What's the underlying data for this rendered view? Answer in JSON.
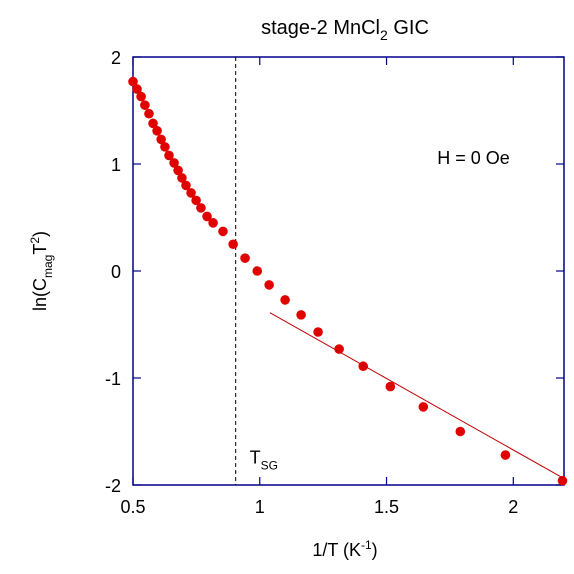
{
  "chart_data": {
    "type": "scatter",
    "title": {
      "text": "stage-2 MnCl",
      "sub": "2",
      "rest": " GIC"
    },
    "xlabel": {
      "text": "1/T (K",
      "sup": "-1",
      "rest": ")"
    },
    "ylabel": {
      "text": "ln(C",
      "sub": "mag",
      "mid": "T",
      "sup": "2",
      "rest": ")"
    },
    "annotations": [
      {
        "text": "H = 0 Oe",
        "x": 1.7,
        "y": 1.0
      },
      {
        "text": "T",
        "sub": "SG",
        "x": 0.96,
        "y": -1.8
      }
    ],
    "vline": {
      "x": 0.905,
      "style": "dashed"
    },
    "xlim": [
      0.5,
      2.2
    ],
    "ylim": [
      -2,
      2
    ],
    "xticks": [
      0.5,
      1,
      1.5,
      2
    ],
    "yticks": [
      -2,
      -1,
      0,
      1,
      2
    ],
    "series": [
      {
        "color": "#e00000",
        "kind": "points",
        "x": [
          0.5,
          0.516,
          0.532,
          0.547,
          0.563,
          0.579,
          0.595,
          0.611,
          0.626,
          0.642,
          0.662,
          0.678,
          0.693,
          0.709,
          0.729,
          0.749,
          0.768,
          0.792,
          0.816,
          0.855,
          0.895,
          0.942,
          0.99,
          1.037,
          1.1,
          1.163,
          1.23,
          1.313,
          1.408,
          1.515,
          1.645,
          1.791,
          1.969,
          2.194
        ],
        "values": [
          1.77,
          1.7,
          1.63,
          1.55,
          1.47,
          1.38,
          1.31,
          1.23,
          1.16,
          1.08,
          1.01,
          0.94,
          0.87,
          0.8,
          0.73,
          0.66,
          0.59,
          0.51,
          0.45,
          0.37,
          0.25,
          0.12,
          0.0,
          -0.13,
          -0.27,
          -0.41,
          -0.57,
          -0.73,
          -0.89,
          -1.08,
          -1.27,
          -1.5,
          -1.72,
          -1.96
        ]
      },
      {
        "color": "#c00000",
        "kind": "line",
        "x": [
          1.04,
          2.2
        ],
        "values": [
          -0.39,
          -1.94
        ]
      }
    ]
  }
}
